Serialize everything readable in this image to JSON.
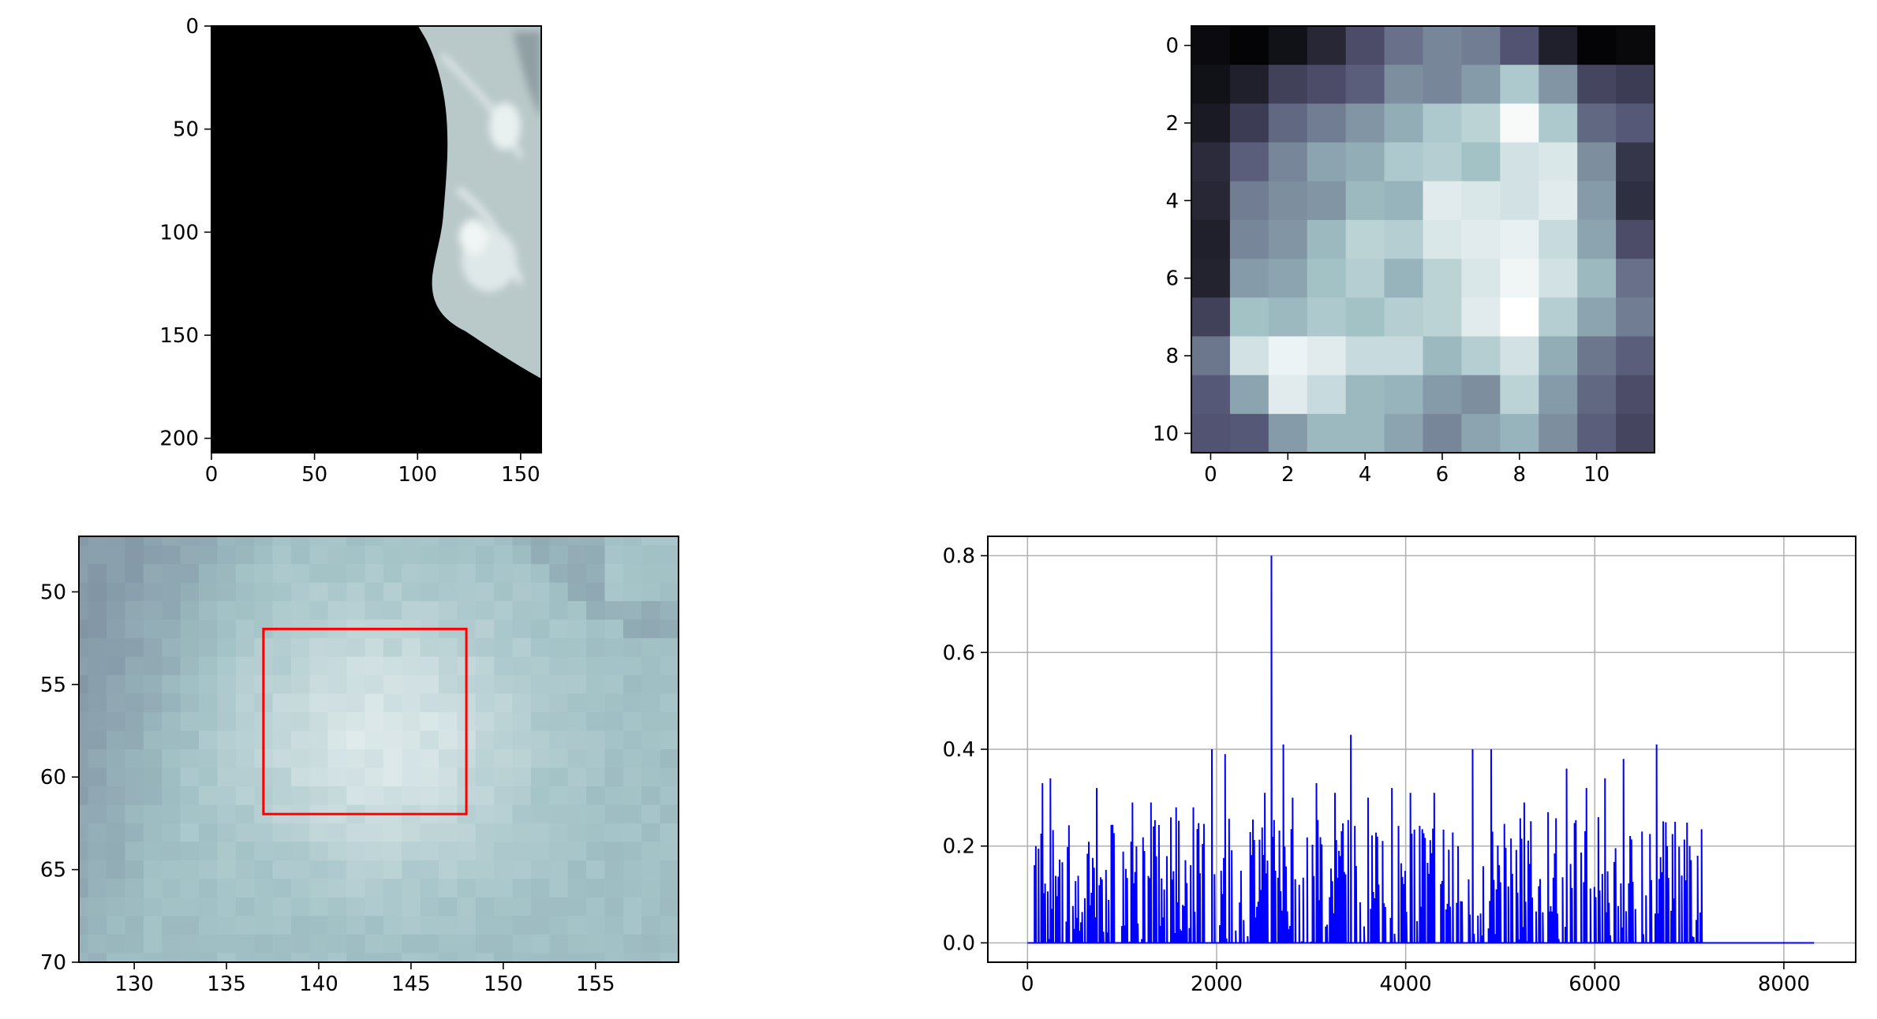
{
  "chart_data": [
    {
      "type": "heatmap",
      "description_role": "full mammogram image",
      "xlim": [
        0,
        160
      ],
      "ylim": [
        207,
        0
      ],
      "xticks": [
        0,
        50,
        100,
        150
      ],
      "yticks": [
        0,
        50,
        100,
        150,
        200
      ],
      "xtick_labels": [
        "0",
        "50",
        "100",
        "150"
      ],
      "ytick_labels": [
        "0",
        "50",
        "100",
        "150",
        "200"
      ],
      "colormap": "bone"
    },
    {
      "type": "heatmap",
      "description_role": "patch crop",
      "xlim": [
        -0.5,
        11.5
      ],
      "ylim": [
        10.5,
        -0.5
      ],
      "xticks": [
        0,
        2,
        4,
        6,
        8,
        10
      ],
      "yticks": [
        0,
        2,
        4,
        6,
        8,
        10
      ],
      "xtick_labels": [
        "0",
        "2",
        "4",
        "6",
        "8",
        "10"
      ],
      "ytick_labels": [
        "0",
        "2",
        "4",
        "6",
        "8",
        "10"
      ],
      "colormap": "bone",
      "values": [
        [
          0.05,
          0.02,
          0.08,
          0.18,
          0.35,
          0.48,
          0.55,
          0.52,
          0.38,
          0.15,
          0.02,
          0.04
        ],
        [
          0.08,
          0.15,
          0.3,
          0.35,
          0.42,
          0.58,
          0.55,
          0.62,
          0.78,
          0.6,
          0.32,
          0.28
        ],
        [
          0.12,
          0.28,
          0.45,
          0.52,
          0.6,
          0.68,
          0.78,
          0.82,
          0.98,
          0.78,
          0.45,
          0.4
        ],
        [
          0.2,
          0.42,
          0.55,
          0.65,
          0.68,
          0.78,
          0.8,
          0.75,
          0.88,
          0.9,
          0.58,
          0.25
        ],
        [
          0.18,
          0.52,
          0.58,
          0.6,
          0.72,
          0.7,
          0.92,
          0.9,
          0.88,
          0.92,
          0.62,
          0.22
        ],
        [
          0.15,
          0.55,
          0.6,
          0.72,
          0.82,
          0.8,
          0.9,
          0.92,
          0.94,
          0.85,
          0.65,
          0.35
        ],
        [
          0.16,
          0.62,
          0.65,
          0.75,
          0.8,
          0.7,
          0.82,
          0.9,
          0.96,
          0.88,
          0.72,
          0.48
        ],
        [
          0.3,
          0.75,
          0.72,
          0.78,
          0.75,
          0.8,
          0.82,
          0.92,
          1.0,
          0.8,
          0.65,
          0.52
        ],
        [
          0.5,
          0.88,
          0.95,
          0.92,
          0.85,
          0.85,
          0.72,
          0.8,
          0.88,
          0.68,
          0.5,
          0.42
        ],
        [
          0.4,
          0.65,
          0.92,
          0.85,
          0.72,
          0.7,
          0.62,
          0.58,
          0.82,
          0.62,
          0.45,
          0.35
        ],
        [
          0.38,
          0.4,
          0.62,
          0.72,
          0.72,
          0.65,
          0.55,
          0.65,
          0.7,
          0.58,
          0.42,
          0.32
        ]
      ]
    },
    {
      "type": "heatmap",
      "description_role": "zoomed region with highlighted box",
      "xlim": [
        127,
        159.5
      ],
      "ylim": [
        70,
        47
      ],
      "xticks": [
        130,
        135,
        140,
        145,
        150,
        155
      ],
      "yticks": [
        50,
        55,
        60,
        65,
        70
      ],
      "xtick_labels": [
        "130",
        "135",
        "140",
        "145",
        "150",
        "155"
      ],
      "ytick_labels": [
        "50",
        "55",
        "60",
        "65",
        "70"
      ],
      "colormap": "bone",
      "box": {
        "x0": 137,
        "x1": 148,
        "y0": 52,
        "y1": 62,
        "color": "#ff0000"
      }
    },
    {
      "type": "line",
      "description_role": "feature vector",
      "xlim": [
        -420,
        8760
      ],
      "ylim": [
        -0.04,
        0.84
      ],
      "xticks": [
        0,
        2000,
        4000,
        6000,
        8000
      ],
      "yticks": [
        0.0,
        0.2,
        0.4,
        0.6,
        0.8
      ],
      "xtick_labels": [
        "0",
        "2000",
        "4000",
        "6000",
        "8000"
      ],
      "ytick_labels": [
        "0.0",
        "0.2",
        "0.4",
        "0.6",
        "0.8"
      ],
      "grid": true,
      "color": "#0000ff",
      "x_extent": [
        0,
        8320
      ],
      "nonzero_x_extent": [
        0,
        7140
      ],
      "peaks": [
        {
          "x": 80,
          "y": 0.2
        },
        {
          "x": 150,
          "y": 0.33
        },
        {
          "x": 230,
          "y": 0.34
        },
        {
          "x": 720,
          "y": 0.32
        },
        {
          "x": 1100,
          "y": 0.29
        },
        {
          "x": 1300,
          "y": 0.29
        },
        {
          "x": 1560,
          "y": 0.28
        },
        {
          "x": 1750,
          "y": 0.28
        },
        {
          "x": 1950,
          "y": 0.4
        },
        {
          "x": 2080,
          "y": 0.39
        },
        {
          "x": 2500,
          "y": 0.31
        },
        {
          "x": 2570,
          "y": 0.8
        },
        {
          "x": 2700,
          "y": 0.41
        },
        {
          "x": 2800,
          "y": 0.3
        },
        {
          "x": 3050,
          "y": 0.33
        },
        {
          "x": 3250,
          "y": 0.31
        },
        {
          "x": 3420,
          "y": 0.43
        },
        {
          "x": 3600,
          "y": 0.3
        },
        {
          "x": 3850,
          "y": 0.32
        },
        {
          "x": 4050,
          "y": 0.31
        },
        {
          "x": 4300,
          "y": 0.31
        },
        {
          "x": 4700,
          "y": 0.4
        },
        {
          "x": 4900,
          "y": 0.4
        },
        {
          "x": 5250,
          "y": 0.29
        },
        {
          "x": 5500,
          "y": 0.27
        },
        {
          "x": 5700,
          "y": 0.36
        },
        {
          "x": 5900,
          "y": 0.32
        },
        {
          "x": 6100,
          "y": 0.34
        },
        {
          "x": 6300,
          "y": 0.38
        },
        {
          "x": 6500,
          "y": 0.23
        },
        {
          "x": 6650,
          "y": 0.41
        },
        {
          "x": 6850,
          "y": 0.25
        },
        {
          "x": 7000,
          "y": 0.2
        },
        {
          "x": 7080,
          "y": 0.18
        }
      ]
    }
  ]
}
